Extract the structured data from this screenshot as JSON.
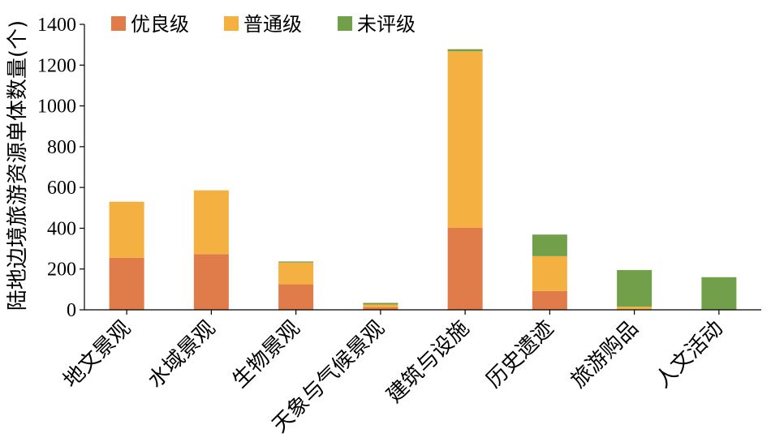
{
  "chart_data": {
    "type": "bar",
    "stacked": true,
    "title": "",
    "xlabel": "",
    "ylabel": "陆地边境旅游资源单体数量(个)",
    "ylim": [
      0,
      1400
    ],
    "yticks": [
      0,
      200,
      400,
      600,
      800,
      1000,
      1200,
      1400
    ],
    "grid": false,
    "legend_position": "top-left",
    "categories": [
      "地文景观",
      "水域景观",
      "生物景观",
      "天象与气候景观",
      "建筑与设施",
      "历史遗迹",
      "旅游购品",
      "人文活动"
    ],
    "series": [
      {
        "name": "优良级",
        "color": "#E07B4A",
        "values": [
          255,
          273,
          125,
          12,
          403,
          92,
          3,
          0
        ]
      },
      {
        "name": "普通级",
        "color": "#F4B040",
        "values": [
          275,
          313,
          107,
          14,
          865,
          171,
          12,
          0
        ]
      },
      {
        "name": "未评级",
        "color": "#72A04A",
        "values": [
          0,
          0,
          5,
          8,
          10,
          106,
          180,
          160
        ]
      }
    ]
  }
}
